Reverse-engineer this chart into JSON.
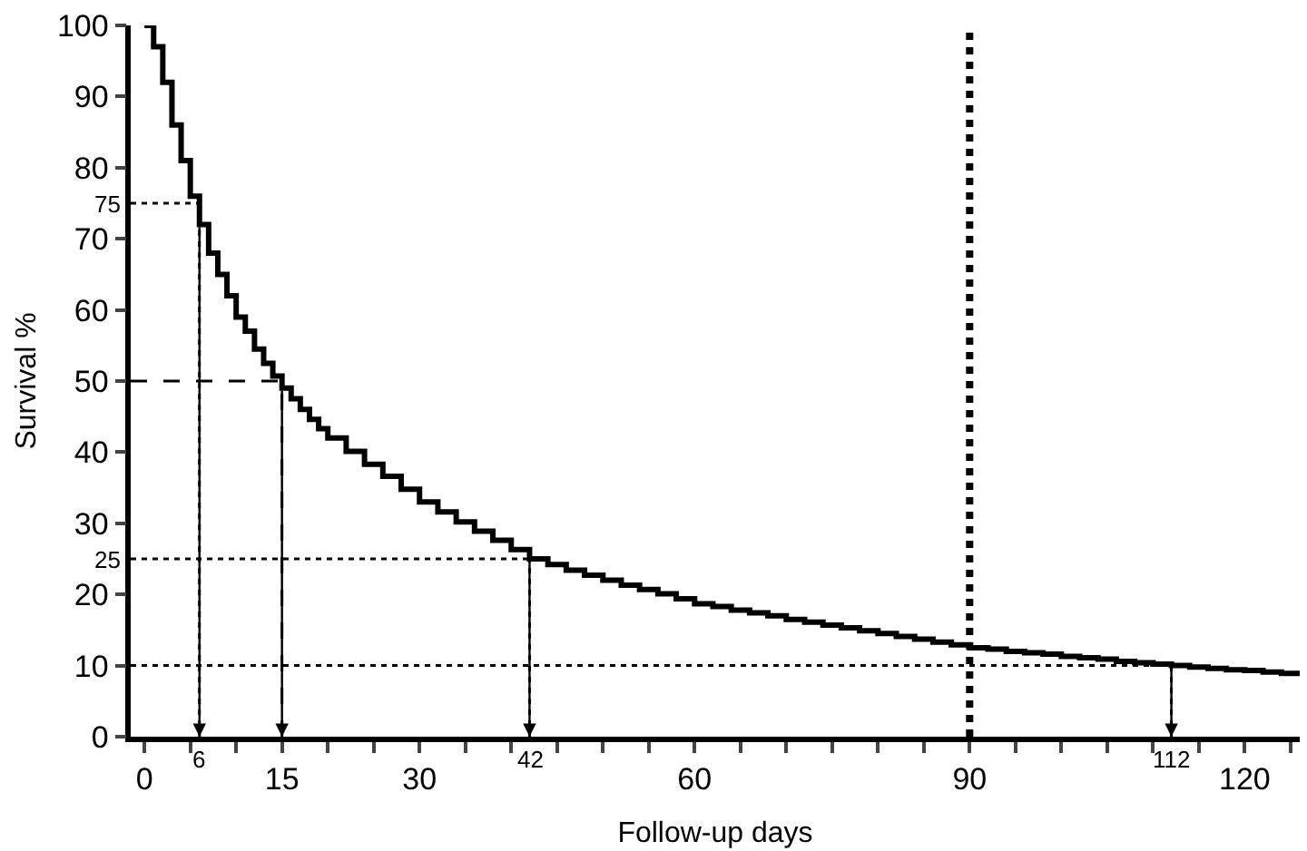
{
  "chart_data": {
    "type": "step",
    "xlabel": "Follow-up days",
    "ylabel": "Survival %",
    "xlim": [
      -1.5,
      126
    ],
    "ylim": [
      0,
      100
    ],
    "xticks": [
      0,
      {
        "value": 5,
        "label": null
      },
      {
        "value": 10,
        "label": null
      },
      15,
      {
        "value": 20,
        "label": null
      },
      {
        "value": 25,
        "label": null
      },
      30,
      {
        "value": 35,
        "label": null
      },
      {
        "value": 40,
        "label": null
      },
      {
        "value": 45,
        "label": null
      },
      {
        "value": 50,
        "label": null
      },
      {
        "value": 55,
        "label": null
      },
      60,
      {
        "value": 65,
        "label": null
      },
      {
        "value": 70,
        "label": null
      },
      {
        "value": 75,
        "label": null
      },
      {
        "value": 80,
        "label": null
      },
      {
        "value": 85,
        "label": null
      },
      90,
      {
        "value": 95,
        "label": null
      },
      {
        "value": 100,
        "label": null
      },
      {
        "value": 105,
        "label": null
      },
      {
        "value": 110,
        "label": null
      },
      {
        "value": 115,
        "label": null
      },
      120,
      {
        "value": 125,
        "label": null
      }
    ],
    "yticks": [
      0,
      10,
      20,
      30,
      40,
      50,
      60,
      70,
      80,
      90,
      100
    ],
    "marker": "none",
    "line_style": "solid",
    "series": [
      {
        "color": "#000000",
        "x": [
          0,
          1,
          2,
          3,
          4,
          5,
          6,
          7,
          8,
          9,
          10,
          11,
          12,
          13,
          14,
          15,
          16,
          17,
          18,
          19,
          20,
          22,
          24,
          26,
          28,
          30,
          32,
          34,
          36,
          38,
          40,
          42,
          44,
          46,
          48,
          50,
          52,
          54,
          56,
          58,
          60,
          62,
          64,
          66,
          68,
          70,
          72,
          74,
          76,
          78,
          80,
          82,
          84,
          86,
          88,
          90,
          92,
          94,
          96,
          98,
          100,
          102,
          104,
          106,
          108,
          110,
          112,
          114,
          116,
          118,
          120,
          122,
          124,
          126
        ],
        "values": [
          100,
          97,
          92,
          86,
          81,
          76,
          72,
          68,
          65,
          62,
          59,
          57,
          54.5,
          52.5,
          50.7,
          49,
          47.5,
          46,
          44.6,
          43.3,
          42,
          40.1,
          38.3,
          36.6,
          34.8,
          33,
          31.6,
          30.2,
          28.9,
          27.6,
          26.3,
          25,
          24.2,
          23.4,
          22.7,
          22,
          21.3,
          20.7,
          20.1,
          19.4,
          18.7,
          18.3,
          17.8,
          17.4,
          17,
          16.5,
          16.1,
          15.7,
          15.3,
          14.9,
          14.5,
          14.1,
          13.7,
          13.3,
          12.9,
          12.5,
          12.3,
          12.0,
          11.8,
          11.6,
          11.3,
          11.1,
          10.9,
          10.6,
          10.4,
          10.2,
          10.0,
          9.8,
          9.6,
          9.4,
          9.3,
          9.1,
          8.9,
          8.7
        ]
      }
    ],
    "ref_lines": [
      {
        "axis": "y",
        "value": 75,
        "label": "75",
        "color": "#000000",
        "line_style": "dotted"
      },
      {
        "axis": "y",
        "value": 50,
        "label": null,
        "color": "#000000",
        "line_style": "dashed"
      },
      {
        "axis": "y",
        "value": 25,
        "label": "25",
        "color": "#000000",
        "line_style": "dotted"
      },
      {
        "axis": "y",
        "value": 10,
        "label": null,
        "color": "#000000",
        "line_style": "dotted"
      },
      {
        "axis": "x",
        "value": 6,
        "label": "6",
        "color": "#000000",
        "line_style": "dotted"
      },
      {
        "axis": "x",
        "value": 15,
        "label": null,
        "color": "#000000",
        "line_style": "dashed"
      },
      {
        "axis": "x",
        "value": 42,
        "label": "42",
        "color": "#000000",
        "line_style": "dotted"
      },
      {
        "axis": "x",
        "value": 112,
        "label": "112",
        "color": "#000000",
        "line_style": "dotted"
      },
      {
        "axis": "x",
        "value": 90,
        "label": null,
        "color": "#000000",
        "line_style": "dotted"
      }
    ]
  }
}
